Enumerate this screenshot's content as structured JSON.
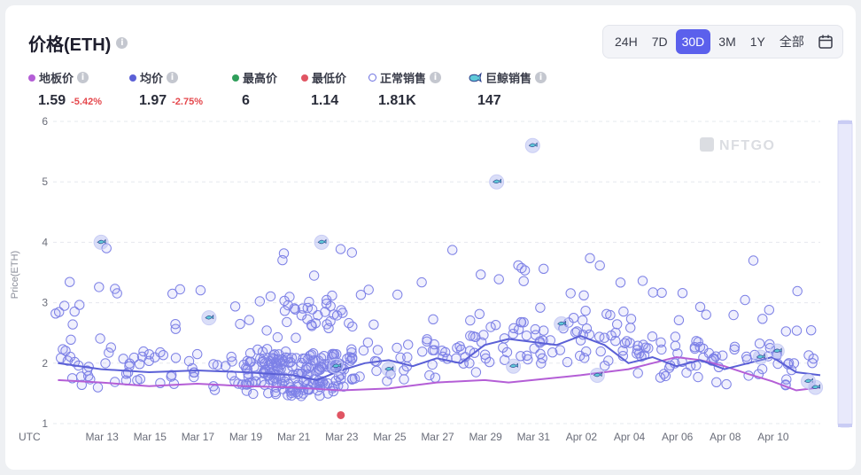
{
  "header": {
    "title": "价格(ETH)"
  },
  "time_range": {
    "options": [
      "24H",
      "7D",
      "30D",
      "3M",
      "1Y",
      "全部"
    ],
    "selected": "30D"
  },
  "legend": {
    "floor": {
      "label": "地板价",
      "value": "1.59",
      "change": "-5.42%",
      "color": "#b45ed6"
    },
    "avg": {
      "label": "均价",
      "value": "1.97",
      "change": "-2.75%",
      "color": "#5b60d6"
    },
    "high": {
      "label": "最高价",
      "value": "6",
      "color": "#2f9e5a"
    },
    "low": {
      "label": "最低价",
      "value": "1.14",
      "color": "#e05563"
    },
    "normal": {
      "label": "正常销售",
      "value": "1.81K"
    },
    "whale": {
      "label": "巨鲸销售",
      "value": "147"
    }
  },
  "watermark": "NFTGO",
  "chart_data": {
    "type": "scatter",
    "ylabel": "Price(ETH)",
    "ylim": [
      1,
      6
    ],
    "yticks": [
      1,
      2,
      3,
      4,
      5,
      6
    ],
    "xlim": [
      "2023-03-11",
      "2023-04-11"
    ],
    "timezone_label": "UTC",
    "xticks": [
      "Mar 13",
      "Mar 15",
      "Mar 17",
      "Mar 19",
      "Mar 21",
      "Mar 23",
      "Mar 25",
      "Mar 27",
      "Mar 29",
      "Mar 31",
      "Apr 02",
      "Apr 04",
      "Apr 06",
      "Apr 08",
      "Apr 10"
    ],
    "floor_line": [
      [
        0.2,
        1.72
      ],
      [
        2,
        1.68
      ],
      [
        4,
        1.62
      ],
      [
        6,
        1.66
      ],
      [
        8,
        1.62
      ],
      [
        10,
        1.6
      ],
      [
        12,
        1.55
      ],
      [
        14,
        1.58
      ],
      [
        16,
        1.68
      ],
      [
        18,
        1.72
      ],
      [
        19,
        1.68
      ],
      [
        20,
        1.72
      ],
      [
        22,
        1.8
      ],
      [
        24,
        1.9
      ],
      [
        25,
        2.0
      ],
      [
        26,
        2.1
      ],
      [
        27,
        2.05
      ],
      [
        28,
        1.95
      ],
      [
        29,
        1.82
      ],
      [
        30,
        1.7
      ],
      [
        31,
        1.55
      ],
      [
        32,
        1.6
      ]
    ],
    "avg_line": [
      [
        0.2,
        2.0
      ],
      [
        2,
        1.9
      ],
      [
        4,
        1.85
      ],
      [
        6,
        1.88
      ],
      [
        8,
        1.85
      ],
      [
        10,
        1.8
      ],
      [
        11,
        1.72
      ],
      [
        12,
        1.88
      ],
      [
        13,
        2.0
      ],
      [
        14,
        2.05
      ],
      [
        15,
        1.95
      ],
      [
        16,
        2.08
      ],
      [
        17,
        2.0
      ],
      [
        18,
        2.3
      ],
      [
        19,
        2.4
      ],
      [
        20,
        2.35
      ],
      [
        21,
        2.3
      ],
      [
        22,
        2.45
      ],
      [
        23,
        2.3
      ],
      [
        24,
        2.0
      ],
      [
        25,
        2.1
      ],
      [
        26,
        1.95
      ],
      [
        27,
        2.05
      ],
      [
        28,
        1.9
      ],
      [
        29,
        2.0
      ],
      [
        30,
        2.1
      ],
      [
        31,
        1.85
      ],
      [
        32,
        1.8
      ]
    ],
    "high_sale": {
      "date": "Mar 31",
      "value": 5.6
    },
    "low_sale": {
      "date": "Mar 23",
      "value": 1.14
    },
    "notable_sales": [
      [
        2,
        4.0
      ],
      [
        6.5,
        2.75
      ],
      [
        11.2,
        4.0
      ],
      [
        11.8,
        1.95
      ],
      [
        14,
        1.9
      ],
      [
        18.5,
        5.0
      ],
      [
        19.2,
        1.95
      ],
      [
        21.2,
        2.65
      ],
      [
        22.7,
        1.8
      ],
      [
        29.5,
        2.1
      ],
      [
        30.2,
        2.2
      ],
      [
        31.5,
        1.7
      ],
      [
        31.8,
        1.6
      ]
    ],
    "sale_count_normal": "1.81K",
    "sale_count_whale": "147"
  }
}
